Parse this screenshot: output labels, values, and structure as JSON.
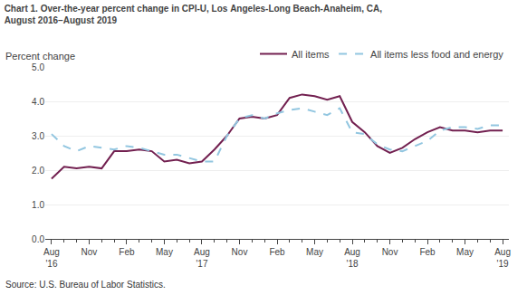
{
  "chart_data": {
    "type": "line",
    "title": "Chart 1. Over-the-year percent change in CPI-U, Los Angeles-Long Beach-Anaheim, CA,\nAugust 2016–August 2019",
    "y_label": "Percent change",
    "annotations": [
      "Source: U.S. Bureau of Labor Statistics."
    ],
    "categories": [
      "Aug\n'16",
      null,
      null,
      "Nov",
      null,
      null,
      "Feb",
      null,
      null,
      "May",
      null,
      null,
      "Aug\n'17",
      null,
      null,
      "Nov",
      null,
      null,
      "Feb",
      null,
      null,
      "May",
      null,
      null,
      "Aug\n'18",
      null,
      null,
      "Nov",
      null,
      null,
      "Feb",
      null,
      null,
      "May",
      null,
      null,
      "Aug\n'19"
    ],
    "series": [
      {
        "name": "All items",
        "color": "#722050",
        "line_style": "solid",
        "values": [
          1.75,
          2.1,
          2.05,
          2.1,
          2.05,
          2.55,
          2.55,
          2.6,
          2.55,
          2.25,
          2.3,
          2.2,
          2.25,
          2.6,
          3.0,
          3.5,
          3.55,
          3.5,
          3.6,
          4.1,
          4.2,
          4.15,
          4.05,
          4.15,
          3.4,
          3.1,
          2.7,
          2.5,
          2.65,
          2.9,
          3.1,
          3.25,
          3.15,
          3.15,
          3.1,
          3.15,
          3.15
        ]
      },
      {
        "name": "All items less food and energy",
        "color": "#92c6e0",
        "line_style": "dashed",
        "values": [
          3.05,
          2.7,
          2.55,
          2.7,
          2.65,
          2.6,
          2.7,
          2.65,
          2.55,
          2.45,
          2.45,
          2.35,
          2.25,
          2.25,
          3.0,
          3.5,
          3.6,
          3.5,
          3.65,
          3.75,
          3.8,
          3.7,
          3.6,
          3.8,
          3.1,
          3.05,
          2.75,
          2.6,
          2.55,
          2.7,
          2.85,
          3.15,
          3.25,
          3.25,
          3.2,
          3.3,
          3.3
        ]
      }
    ],
    "ylim": [
      0.0,
      5.0
    ],
    "yticks": [
      {
        "value": 0.0,
        "label": "0.0"
      },
      {
        "value": 1.0,
        "label": "1.0"
      },
      {
        "value": 2.0,
        "label": "2.0"
      },
      {
        "value": 3.0,
        "label": "3.0"
      },
      {
        "value": 4.0,
        "label": "4.0"
      },
      {
        "value": 5.0,
        "label": "5.0"
      }
    ],
    "grid": true,
    "legend": "upper right"
  }
}
